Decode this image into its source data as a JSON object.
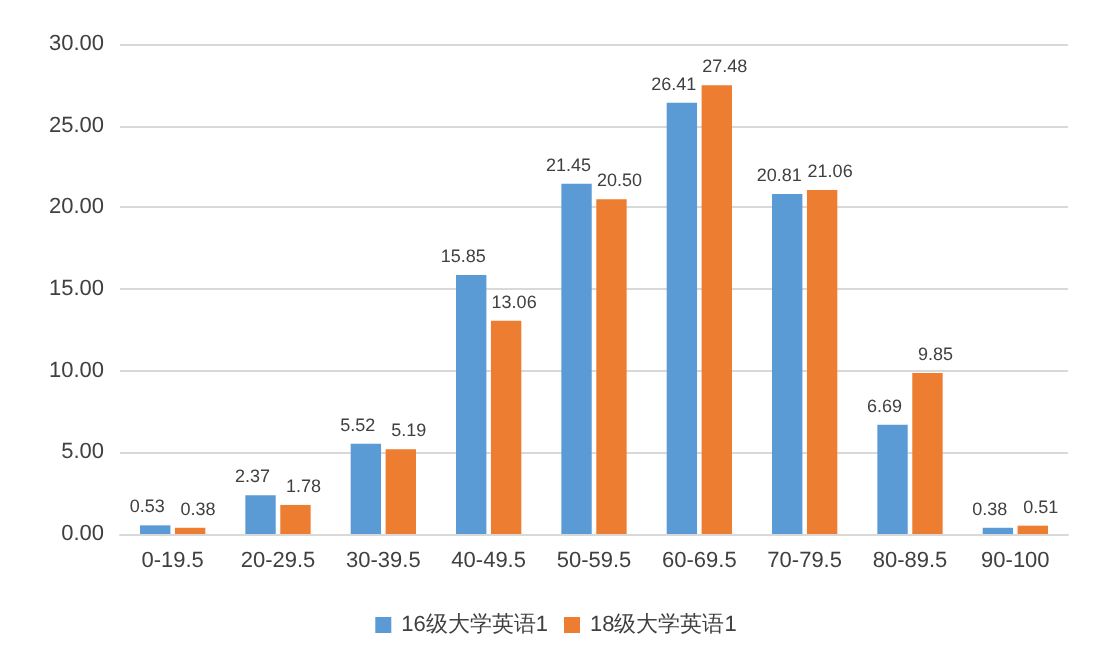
{
  "chart_data": {
    "type": "bar",
    "categories": [
      "0-19.5",
      "20-29.5",
      "30-39.5",
      "40-49.5",
      "50-59.5",
      "60-69.5",
      "70-79.5",
      "80-89.5",
      "90-100"
    ],
    "series": [
      {
        "name": "16级大学英语1",
        "color": "#5b9bd5",
        "values": [
          0.53,
          2.37,
          5.52,
          15.85,
          21.45,
          26.41,
          20.81,
          6.69,
          0.38
        ],
        "value_labels": [
          "0.53",
          "2.37",
          "5.52",
          "15.85",
          "21.45",
          "26.41",
          "20.81",
          "6.69",
          "0.38"
        ]
      },
      {
        "name": "18级大学英语1",
        "color": "#ed7d31",
        "values": [
          0.38,
          1.78,
          5.19,
          13.06,
          20.5,
          27.48,
          21.06,
          9.85,
          0.51
        ],
        "value_labels": [
          "0.38",
          "1.78",
          "5.19",
          "13.06",
          "20.50",
          "27.48",
          "21.06",
          "9.85",
          "0.51"
        ]
      }
    ],
    "ylim": [
      0,
      30
    ],
    "yticks": [
      {
        "value": 0,
        "label": "0.00"
      },
      {
        "value": 5,
        "label": "5.00"
      },
      {
        "value": 10,
        "label": "10.00"
      },
      {
        "value": 15,
        "label": "15.00"
      },
      {
        "value": 20,
        "label": "20.00"
      },
      {
        "value": 25,
        "label": "25.00"
      },
      {
        "value": 30,
        "label": "30.00"
      }
    ],
    "grid": "y",
    "legend": "bottom"
  }
}
